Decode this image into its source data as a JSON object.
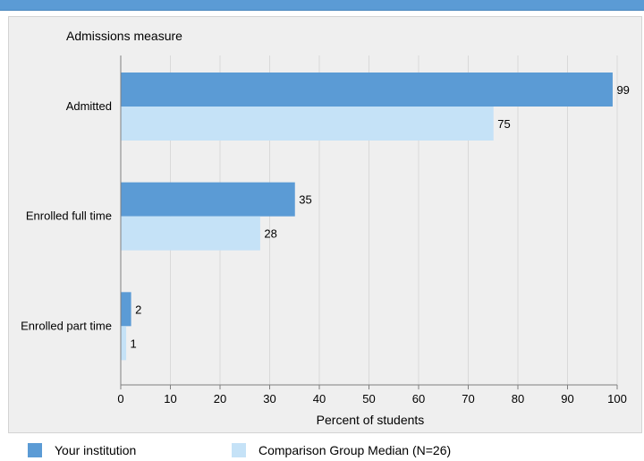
{
  "chart_data": {
    "type": "bar",
    "orientation": "horizontal",
    "title": "",
    "ylabel": "Admissions measure",
    "xlabel": "Percent of students",
    "categories": [
      "Admitted",
      "Enrolled full time",
      "Enrolled part time"
    ],
    "series": [
      {
        "name": "Your institution",
        "values": [
          99,
          35,
          2
        ],
        "color": "#5b9bd5"
      },
      {
        "name": "Comparison Group Median (N=26)",
        "values": [
          75,
          28,
          1
        ],
        "color": "#c5e2f7"
      }
    ],
    "xlim": [
      0,
      100
    ],
    "xticks": [
      0,
      10,
      20,
      30,
      40,
      50,
      60,
      70,
      80,
      90,
      100
    ],
    "grid": true,
    "data_labels": true,
    "legend_position": "bottom"
  }
}
